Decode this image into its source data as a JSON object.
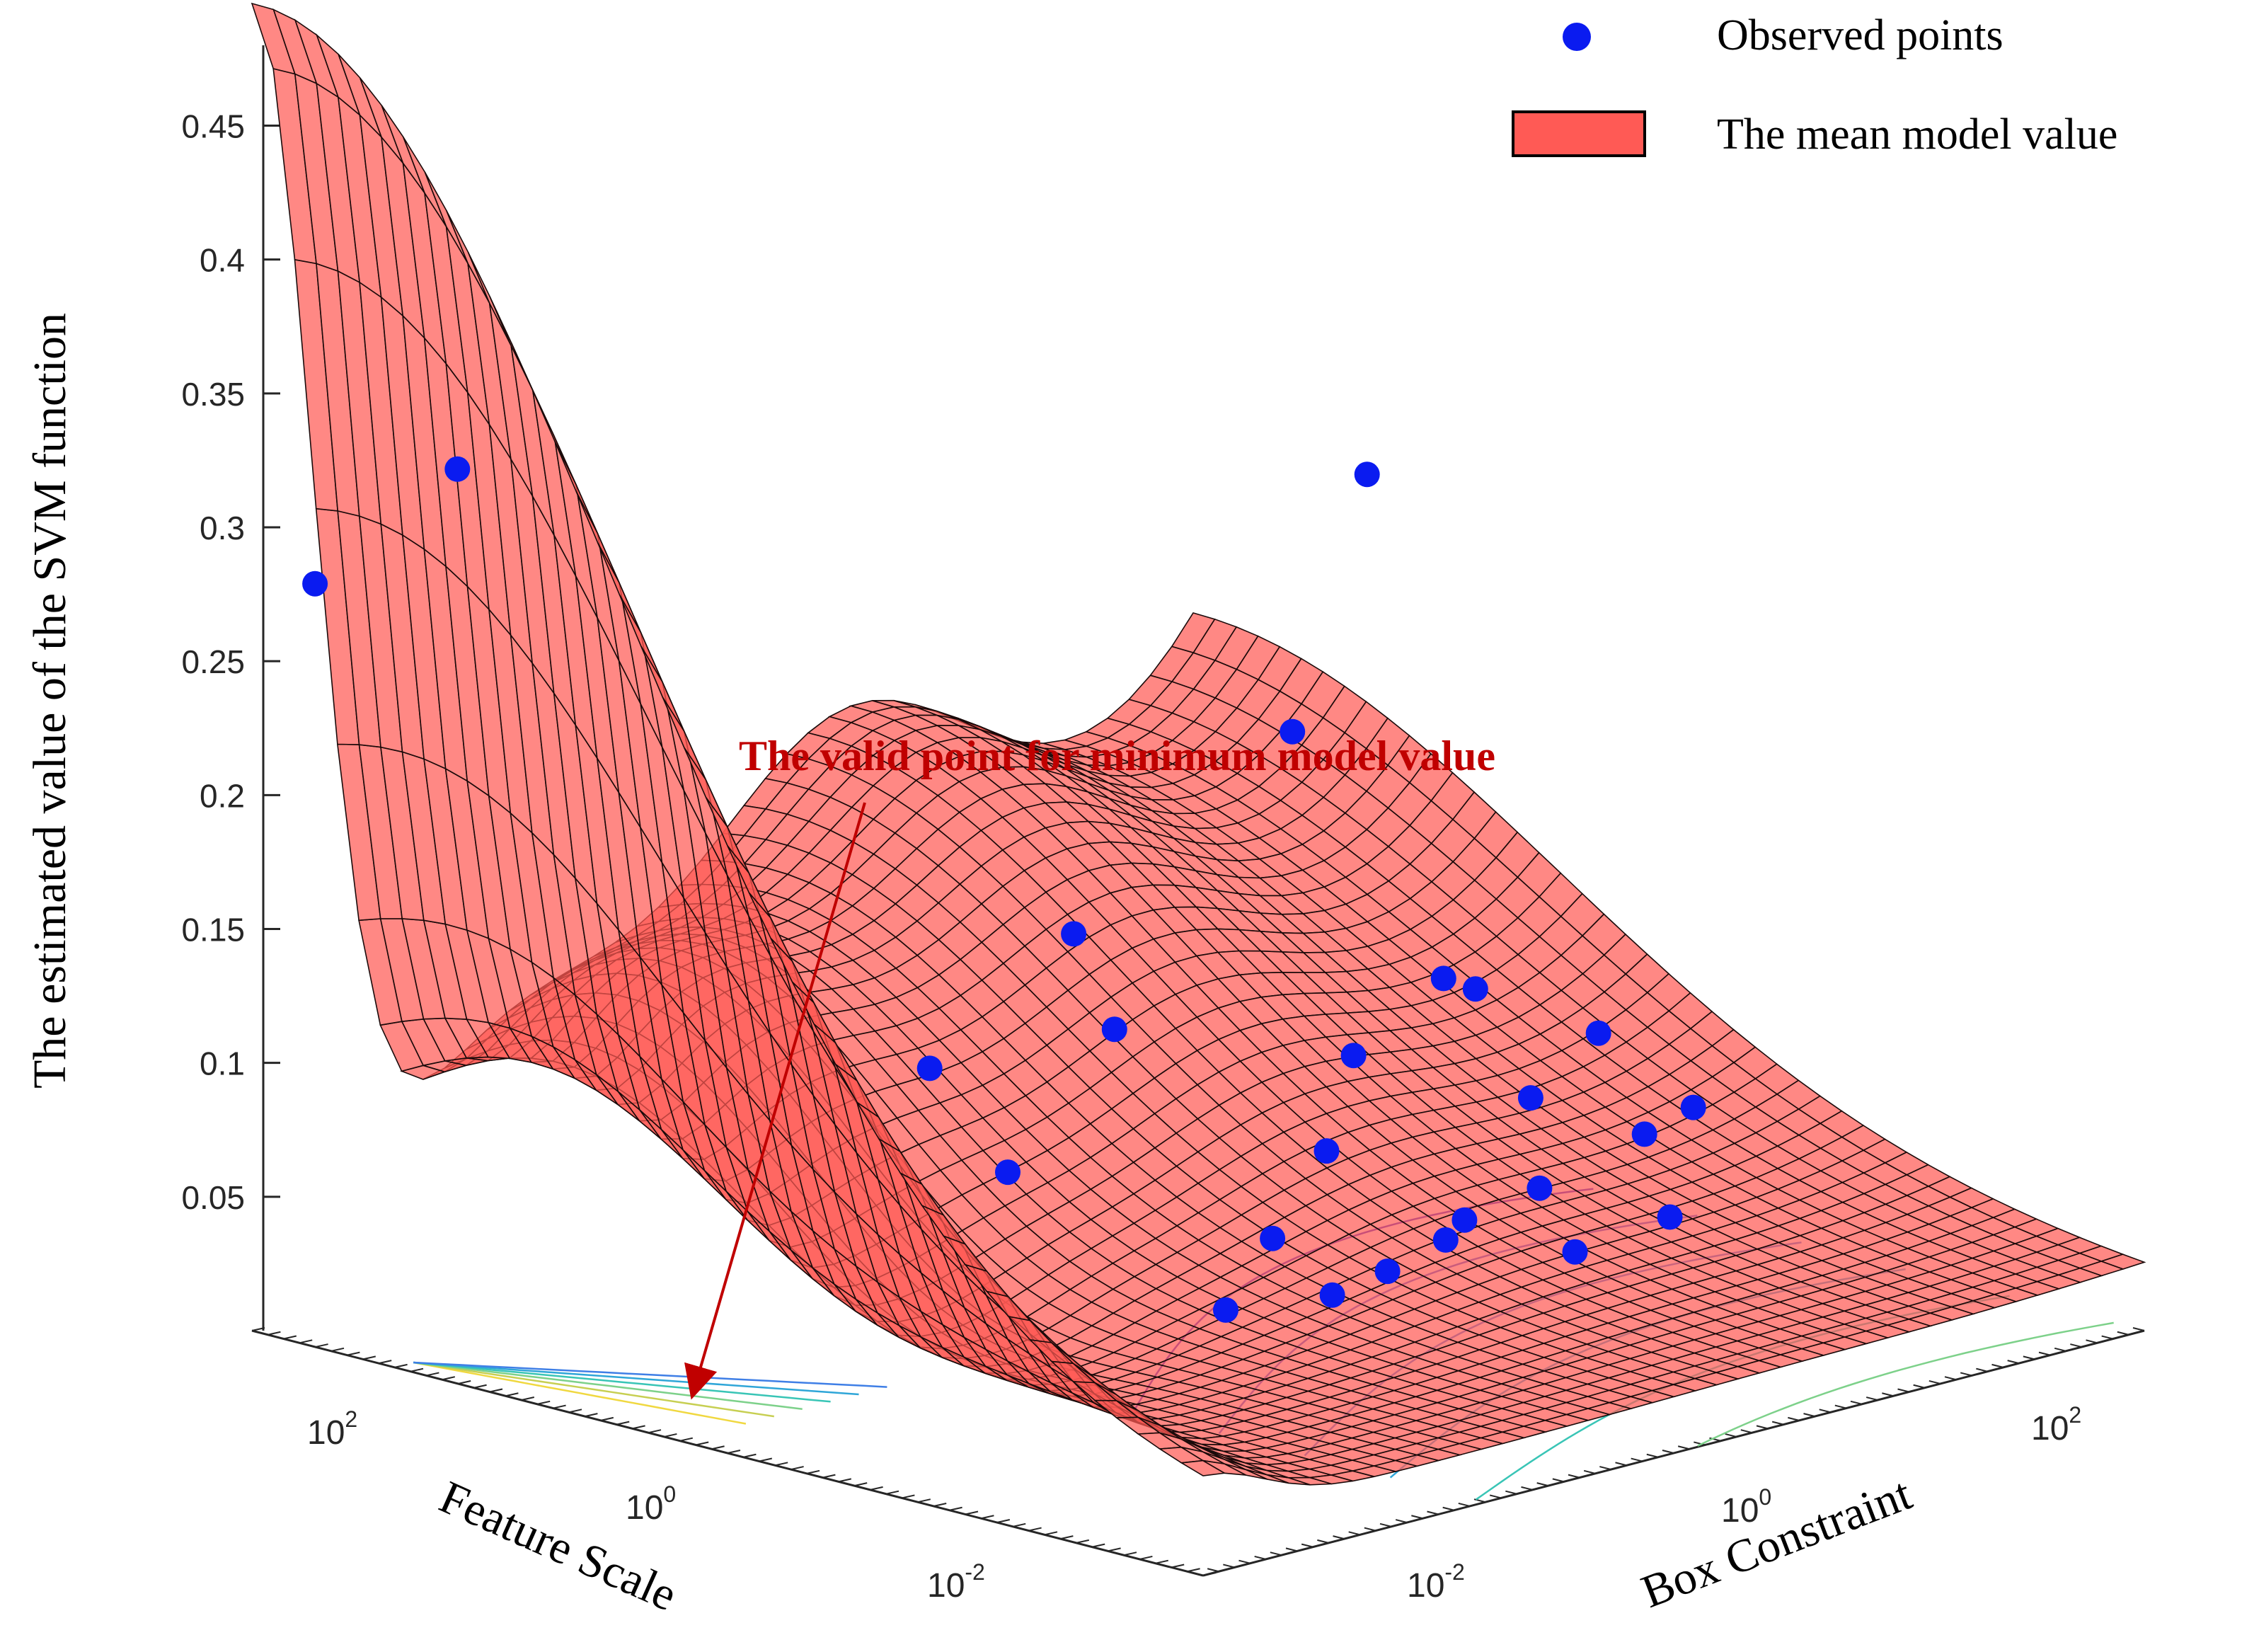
{
  "chart_data": {
    "type": "surface",
    "zlabel": "The estimated value of the SVM function",
    "xlabel": "Box Constraint",
    "ylabel": "Feature Scale",
    "zlim": [
      0.0,
      0.48
    ],
    "z_ticks": [
      "0.05",
      "0.1",
      "0.15",
      "0.2",
      "0.25",
      "0.3",
      "0.35",
      "0.4",
      "0.45"
    ],
    "z_tick_values": [
      0.05,
      0.1,
      0.15,
      0.2,
      0.25,
      0.3,
      0.35,
      0.4,
      0.45
    ],
    "x_scale": "log",
    "y_scale": "log",
    "xlim": [
      0.001,
      1000
    ],
    "ylim": [
      0.001,
      1000
    ],
    "x_ticks": [
      {
        "base": "10",
        "exp": "-2",
        "value": 0.01
      },
      {
        "base": "10",
        "exp": "0",
        "value": 1
      },
      {
        "base": "10",
        "exp": "2",
        "value": 100
      }
    ],
    "y_ticks": [
      {
        "base": "10",
        "exp": "-2",
        "value": 0.01
      },
      {
        "base": "10",
        "exp": "0",
        "value": 1
      },
      {
        "base": "10",
        "exp": "2",
        "value": 100
      }
    ],
    "legend": {
      "placement": "top-right",
      "entries": [
        {
          "label": "Observed points",
          "marker": "circle",
          "color": "#0a1bf0"
        },
        {
          "label": "The mean model value",
          "marker": "patch",
          "color": "#ff5a55"
        }
      ]
    },
    "annotation": {
      "text": "The valid point for minimum model value",
      "color": "#c00000",
      "x": 1,
      "y": 1,
      "z": 0.005
    },
    "surface_color": "#ff5a55",
    "observed_points": [
      {
        "x": 0.001,
        "y": 400,
        "z": 0.285
      },
      {
        "x": 0.003,
        "y": 150,
        "z": 0.327
      },
      {
        "x": 1.5,
        "y": 1,
        "z": 0.005
      },
      {
        "x": 5,
        "y": 0.7,
        "z": 0.005
      },
      {
        "x": 8,
        "y": 0.5,
        "z": 0.013
      },
      {
        "x": 15,
        "y": 0.4,
        "z": 0.022
      },
      {
        "x": 6,
        "y": 2,
        "z": 0.018
      },
      {
        "x": 0.5,
        "y": 8,
        "z": 0.05
      },
      {
        "x": 0.3,
        "y": 15,
        "z": 0.088
      },
      {
        "x": 3,
        "y": 10,
        "z": 0.09
      },
      {
        "x": 5,
        "y": 30,
        "z": 0.115
      },
      {
        "x": 20,
        "y": 3,
        "z": 0.04
      },
      {
        "x": 60,
        "y": 1.2,
        "z": 0.013
      },
      {
        "x": 100,
        "y": 0.4,
        "z": 0.005
      },
      {
        "x": 150,
        "y": 1,
        "z": 0.02
      },
      {
        "x": 80,
        "y": 8,
        "z": 0.06
      },
      {
        "x": 250,
        "y": 60,
        "z": 0.16
      },
      {
        "x": 300,
        "y": 8,
        "z": 0.08
      },
      {
        "x": 600,
        "y": 10,
        "z": 0.07
      },
      {
        "x": 400,
        "y": 3,
        "z": 0.04
      },
      {
        "x": 700,
        "y": 1,
        "z": 0.03
      },
      {
        "x": 1000,
        "y": 0.7,
        "z": 0.04
      },
      {
        "x": 900,
        "y": 2.5,
        "z": 0.06
      },
      {
        "x": 200,
        "y": 0.2,
        "z": 0.018
      },
      {
        "x": 1000,
        "y": 80,
        "z": 0.245
      }
    ],
    "minimum_point": {
      "x": 1.5,
      "y": 1,
      "z": 0.005
    }
  }
}
